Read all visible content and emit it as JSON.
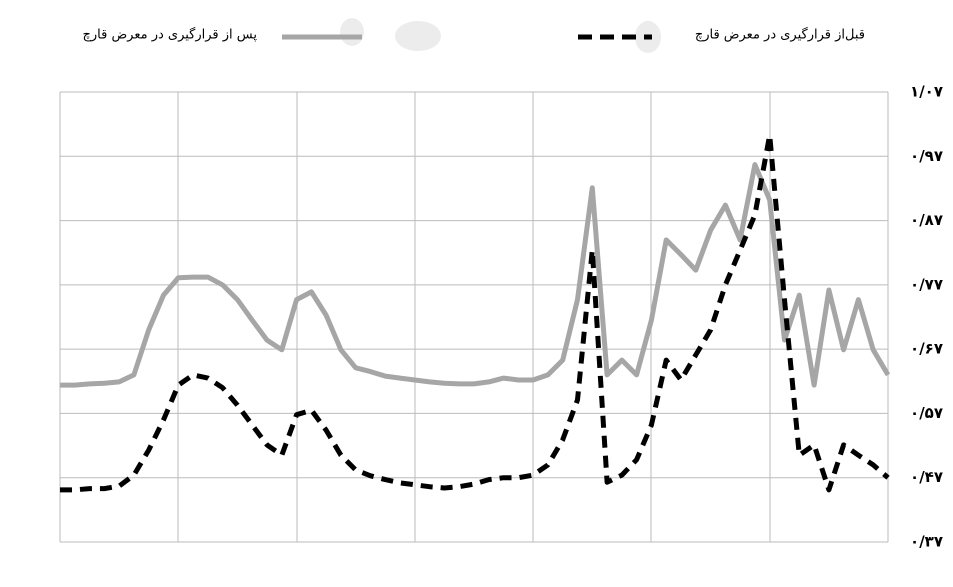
{
  "chart_data": {
    "type": "line",
    "categories": [
      null,
      null,
      null,
      null,
      null,
      null,
      null,
      null,
      null,
      null,
      null,
      null,
      null,
      null,
      null,
      null,
      null,
      null,
      null,
      null,
      null,
      null,
      null,
      null,
      null,
      null,
      null,
      null,
      null,
      null,
      null,
      null,
      null,
      null,
      null,
      null,
      null,
      null,
      null,
      null,
      null,
      null,
      null,
      null,
      null,
      null,
      null,
      null,
      null,
      null,
      null,
      null,
      null,
      null,
      null,
      null,
      null
    ],
    "series": [
      {
        "name": "قبل‌از قرارگیری در معرض قارچ",
        "color": "#000000",
        "dashed": true,
        "values": [
          0.451,
          0.451,
          0.453,
          0.453,
          0.457,
          0.474,
          0.513,
          0.56,
          0.614,
          0.63,
          0.625,
          0.61,
          0.583,
          0.552,
          0.521,
          0.505,
          0.568,
          0.575,
          0.544,
          0.505,
          0.482,
          0.473,
          0.467,
          0.462,
          0.459,
          0.456,
          0.454,
          0.456,
          0.46,
          0.467,
          0.47,
          0.47,
          0.474,
          0.49,
          0.529,
          0.591,
          0.824,
          0.463,
          0.474,
          0.498,
          0.552,
          0.653,
          0.622,
          0.661,
          0.7,
          0.77,
          0.824,
          0.879,
          1.003,
          0.747,
          0.505,
          0.521,
          0.451,
          0.521,
          0.505,
          0.49,
          0.47
        ]
      },
      {
        "name": "پس از قرارگیری در معرض قارچ",
        "color": "#a6a6a6",
        "dashed": false,
        "values": [
          0.614,
          0.614,
          0.616,
          0.617,
          0.619,
          0.63,
          0.7,
          0.754,
          0.781,
          0.782,
          0.782,
          0.77,
          0.747,
          0.715,
          0.684,
          0.669,
          0.747,
          0.759,
          0.723,
          0.669,
          0.641,
          0.635,
          0.628,
          0.625,
          0.622,
          0.619,
          0.617,
          0.616,
          0.616,
          0.619,
          0.625,
          0.622,
          0.622,
          0.63,
          0.653,
          0.747,
          0.921,
          0.63,
          0.653,
          0.63,
          0.715,
          0.84,
          0.817,
          0.793,
          0.855,
          0.894,
          0.84,
          0.957,
          0.902,
          0.684,
          0.754,
          0.614,
          0.762,
          0.669,
          0.747,
          0.669,
          0.63
        ]
      }
    ],
    "ylim": [
      0.37,
      1.07
    ],
    "yticks": [
      {
        "value": 0.37,
        "label": "۰/۳۷"
      },
      {
        "value": 0.47,
        "label": "۰/۴۷"
      },
      {
        "value": 0.57,
        "label": "۰/۵۷"
      },
      {
        "value": 0.67,
        "label": "۰/۶۷"
      },
      {
        "value": 0.77,
        "label": "۰/۷۷"
      },
      {
        "value": 0.87,
        "label": "۰/۸۷"
      },
      {
        "value": 0.97,
        "label": "۰/۹۷"
      },
      {
        "value": 1.07,
        "label": "۱/۰۷"
      }
    ],
    "y_axis_side": "right",
    "grid": true
  }
}
